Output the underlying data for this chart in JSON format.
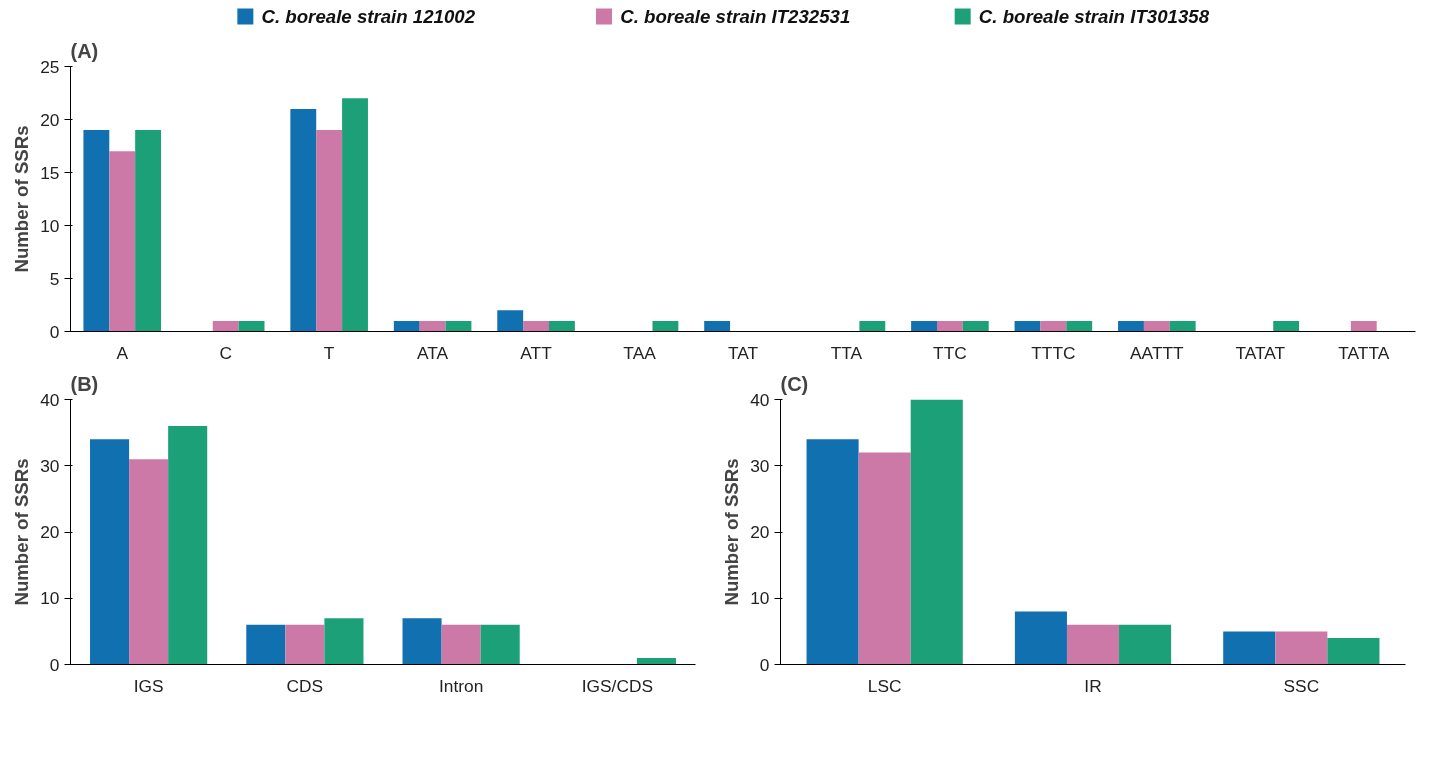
{
  "chart_data": [
    {
      "type": "bar",
      "title": "(A)",
      "ylabel": "Number of SSRs",
      "categories": [
        "A",
        "C",
        "T",
        "ATA",
        "ATT",
        "TAA",
        "TAT",
        "TTA",
        "TTC",
        "TTTC",
        "AATTT",
        "TATAT",
        "TATTA"
      ],
      "ylim": [
        0,
        25
      ],
      "yticks": [
        0,
        5,
        10,
        15,
        20,
        25
      ],
      "legend": "top",
      "series": [
        {
          "name": "C. boreale strain 121002",
          "color": "#1070b0",
          "values": [
            19,
            0,
            21,
            1,
            2,
            0,
            1,
            0,
            1,
            1,
            1,
            0,
            0
          ]
        },
        {
          "name": "C. boreale strain IT232531",
          "color": "#cc79a7",
          "values": [
            17,
            1,
            19,
            1,
            1,
            0,
            0,
            0,
            1,
            1,
            1,
            0,
            1
          ]
        },
        {
          "name": "C. boreale strain IT301358",
          "color": "#1ba077",
          "values": [
            19,
            1,
            22,
            1,
            1,
            1,
            0,
            1,
            1,
            1,
            1,
            1,
            0
          ]
        }
      ]
    },
    {
      "type": "bar",
      "title": "(B)",
      "ylabel": "Number of SSRs",
      "categories": [
        "IGS",
        "CDS",
        "Intron",
        "IGS/CDS"
      ],
      "ylim": [
        0,
        40
      ],
      "yticks": [
        0,
        10,
        20,
        30,
        40
      ],
      "series": [
        {
          "color": "#1070b0",
          "values": [
            34,
            6,
            7,
            0
          ]
        },
        {
          "color": "#cc79a7",
          "values": [
            31,
            6,
            6,
            0
          ]
        },
        {
          "color": "#1ba077",
          "values": [
            36,
            7,
            6,
            1
          ]
        }
      ]
    },
    {
      "type": "bar",
      "title": "(C)",
      "ylabel": "Number of SSRs",
      "categories": [
        "LSC",
        "IR",
        "SSC"
      ],
      "ylim": [
        0,
        40
      ],
      "yticks": [
        0,
        10,
        20,
        30,
        40
      ],
      "series": [
        {
          "color": "#1070b0",
          "values": [
            34,
            8,
            5
          ]
        },
        {
          "color": "#cc79a7",
          "values": [
            32,
            6,
            5
          ]
        },
        {
          "color": "#1ba077",
          "values": [
            40,
            6,
            4
          ]
        }
      ]
    }
  ]
}
